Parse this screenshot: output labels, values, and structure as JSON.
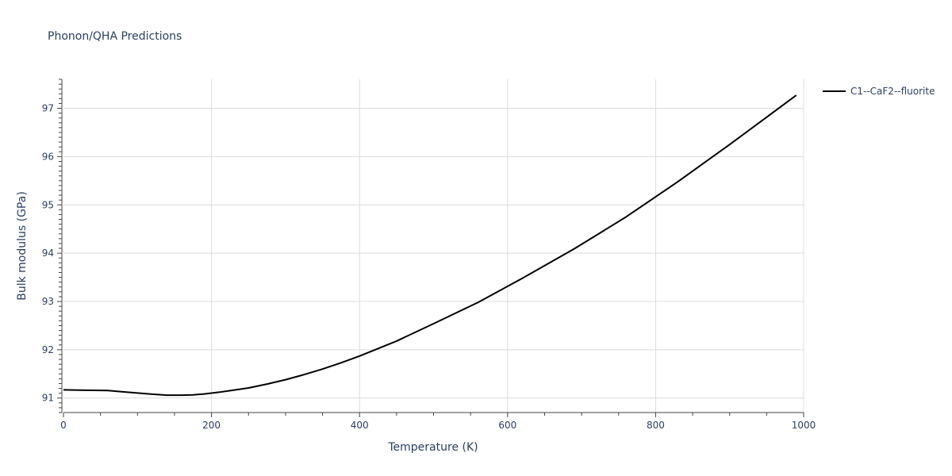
{
  "chart_data": {
    "type": "line",
    "title": "Phonon/QHA Predictions",
    "xlabel": "Temperature (K)",
    "ylabel": "Bulk modulus (GPa)",
    "xlim": [
      0,
      1000
    ],
    "ylim": [
      90.7,
      97.6
    ],
    "xticks": [
      0,
      200,
      400,
      600,
      800,
      1000
    ],
    "yticks": [
      91,
      92,
      93,
      94,
      95,
      96,
      97
    ],
    "grid": true,
    "legend_position": "top-right",
    "series": [
      {
        "name": "C1--CaF2--fluorite",
        "color": "#000000",
        "x": [
          0,
          20,
          40,
          60,
          80,
          100,
          120,
          140,
          160,
          175,
          190,
          210,
          230,
          250,
          275,
          300,
          325,
          350,
          375,
          400,
          450,
          500,
          560,
          620,
          690,
          760,
          830,
          900,
          960,
          990
        ],
        "y": [
          91.17,
          91.165,
          91.16,
          91.155,
          91.13,
          91.105,
          91.08,
          91.06,
          91.06,
          91.065,
          91.085,
          91.12,
          91.165,
          91.21,
          91.29,
          91.38,
          91.485,
          91.6,
          91.73,
          91.87,
          92.18,
          92.54,
          92.98,
          93.48,
          94.09,
          94.75,
          95.48,
          96.25,
          96.93,
          97.27
        ]
      }
    ]
  }
}
